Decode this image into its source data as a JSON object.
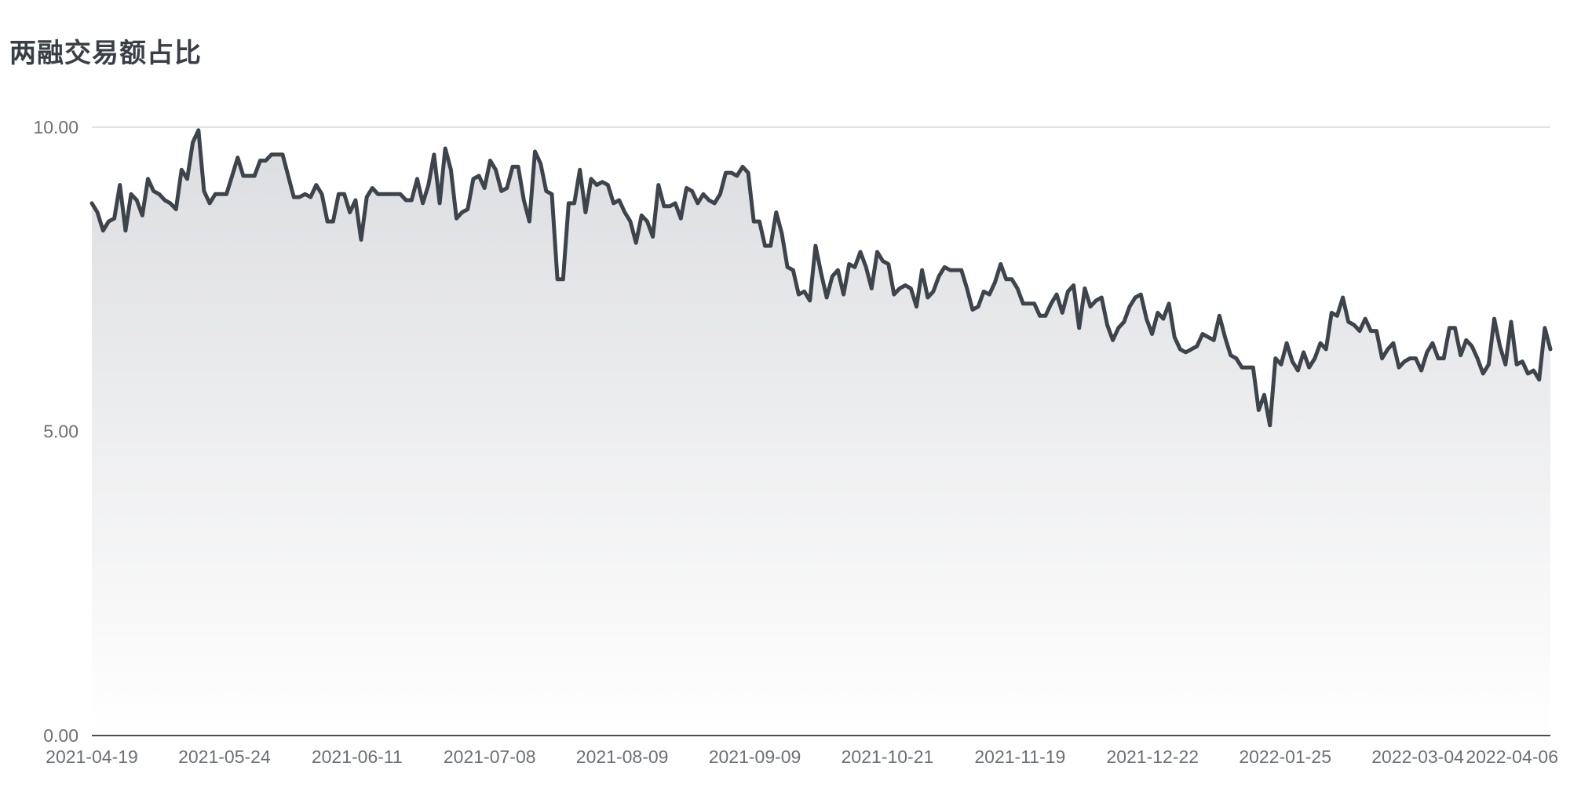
{
  "chart_data": {
    "type": "area",
    "title": "两融交易额占比",
    "xlabel": "",
    "ylabel": "",
    "ylim": [
      0,
      10
    ],
    "y_ticks": [
      "0.00",
      "5.00",
      "10.00"
    ],
    "x_tick_labels": [
      "2021-04-19",
      "2021-05-24",
      "2021-06-11",
      "2021-07-08",
      "2021-08-09",
      "2021-09-09",
      "2021-10-21",
      "2021-11-19",
      "2021-12-22",
      "2022-01-25",
      "2022-03-04",
      "2022-04-06"
    ],
    "grid": true,
    "legend": "none",
    "colors": {
      "line": "#3d444c",
      "area_top": "#dcdde0",
      "area_bottom": "#ffffff",
      "grid": "#d5d8e3",
      "axis": "#4a4f56"
    },
    "series": [
      {
        "values": [
          8.75,
          8.6,
          8.3,
          8.45,
          8.5,
          9.05,
          8.3,
          8.9,
          8.8,
          8.55,
          9.15,
          8.95,
          8.9,
          8.8,
          8.75,
          8.65,
          9.3,
          9.15,
          9.75,
          9.95,
          8.95,
          8.75,
          8.9,
          8.9,
          8.9,
          9.2,
          9.5,
          9.2,
          9.2,
          9.2,
          9.45,
          9.45,
          9.55,
          9.55,
          9.55,
          9.2,
          8.85,
          8.85,
          8.9,
          8.85,
          9.05,
          8.9,
          8.45,
          8.45,
          8.9,
          8.9,
          8.6,
          8.8,
          8.15,
          8.85,
          9.0,
          8.9,
          8.9,
          8.9,
          8.9,
          8.9,
          8.8,
          8.8,
          9.15,
          8.75,
          9.05,
          9.55,
          8.75,
          9.65,
          9.3,
          8.5,
          8.6,
          8.65,
          9.15,
          9.2,
          9.0,
          9.45,
          9.3,
          8.95,
          9.0,
          9.35,
          9.35,
          8.8,
          8.45,
          9.6,
          9.4,
          8.95,
          8.9,
          7.5,
          7.5,
          8.75,
          8.75,
          9.3,
          8.6,
          9.15,
          9.05,
          9.1,
          9.05,
          8.75,
          8.8,
          8.6,
          8.45,
          8.1,
          8.55,
          8.45,
          8.2,
          9.05,
          8.7,
          8.7,
          8.75,
          8.5,
          9.0,
          8.95,
          8.75,
          8.9,
          8.8,
          8.75,
          8.9,
          9.25,
          9.25,
          9.2,
          9.35,
          9.25,
          8.45,
          8.45,
          8.05,
          8.05,
          8.6,
          8.25,
          7.7,
          7.65,
          7.25,
          7.3,
          7.15,
          8.05,
          7.6,
          7.2,
          7.55,
          7.65,
          7.25,
          7.75,
          7.7,
          7.95,
          7.7,
          7.35,
          7.95,
          7.8,
          7.75,
          7.25,
          7.35,
          7.4,
          7.35,
          7.05,
          7.65,
          7.2,
          7.3,
          7.55,
          7.7,
          7.65,
          7.65,
          7.65,
          7.35,
          7.0,
          7.05,
          7.3,
          7.25,
          7.45,
          7.75,
          7.5,
          7.5,
          7.35,
          7.1,
          7.1,
          7.1,
          6.9,
          6.9,
          7.1,
          7.25,
          6.95,
          7.3,
          7.4,
          6.7,
          7.35,
          7.05,
          7.15,
          7.2,
          6.75,
          6.5,
          6.7,
          6.8,
          7.05,
          7.2,
          7.25,
          6.85,
          6.6,
          6.95,
          6.85,
          7.1,
          6.55,
          6.35,
          6.3,
          6.35,
          6.4,
          6.6,
          6.55,
          6.5,
          6.9,
          6.55,
          6.25,
          6.2,
          6.05,
          6.05,
          6.05,
          5.35,
          5.6,
          5.1,
          6.2,
          6.1,
          6.45,
          6.15,
          6.0,
          6.3,
          6.05,
          6.2,
          6.45,
          6.35,
          6.95,
          6.9,
          7.2,
          6.8,
          6.75,
          6.65,
          6.85,
          6.65,
          6.65,
          6.2,
          6.35,
          6.45,
          6.05,
          6.15,
          6.2,
          6.2,
          6.0,
          6.3,
          6.45,
          6.2,
          6.2,
          6.7,
          6.7,
          6.25,
          6.5,
          6.4,
          6.2,
          5.95,
          6.1,
          6.85,
          6.4,
          6.1,
          6.8,
          6.1,
          6.15,
          5.95,
          6.0,
          5.85,
          6.7,
          6.35
        ]
      }
    ]
  }
}
